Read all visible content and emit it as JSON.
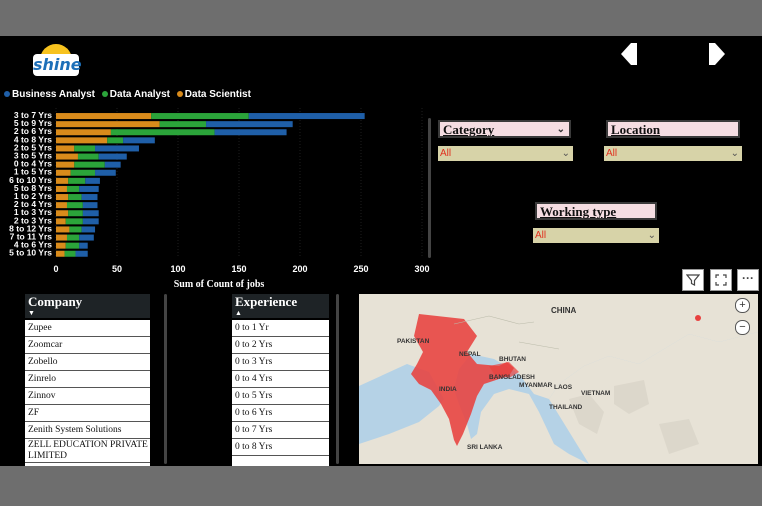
{
  "app": {
    "logo_text": "shine"
  },
  "nav": {
    "prev_label": "previous-page",
    "next_label": "next-page"
  },
  "legend": [
    {
      "name": "Business Analyst",
      "color": "#1f5fa8"
    },
    {
      "name": "Data Analyst",
      "color": "#2ba43a"
    },
    {
      "name": "Data Scientist",
      "color": "#d98b1b"
    }
  ],
  "chart_data": {
    "type": "bar",
    "orientation": "horizontal",
    "stacked": true,
    "categories": [
      "3 to 7 Yrs",
      "5 to 9 Yrs",
      "2 to 6 Yrs",
      "4 to 8 Yrs",
      "2 to 5 Yrs",
      "3 to 5 Yrs",
      "0 to 4 Yrs",
      "1 to 5 Yrs",
      "6 to 10 Yrs",
      "5 to 8 Yrs",
      "1 to 2 Yrs",
      "2 to 4 Yrs",
      "1 to 3 Yrs",
      "2 to 3 Yrs",
      "8 to 12 Yrs",
      "7 to 11 Yrs",
      "4 to 6 Yrs",
      "5 to 10 Yrs"
    ],
    "series": [
      {
        "name": "Data Scientist",
        "color": "#d98b1b",
        "values": [
          78,
          85,
          45,
          42,
          15,
          18,
          15,
          12,
          10,
          9,
          10,
          9,
          10,
          8,
          11,
          9,
          8,
          7
        ]
      },
      {
        "name": "Data Analyst",
        "color": "#2ba43a",
        "values": [
          80,
          38,
          85,
          13,
          17,
          17,
          25,
          20,
          14,
          10,
          11,
          13,
          12,
          14,
          10,
          10,
          11,
          9
        ]
      },
      {
        "name": "Business Analyst",
        "color": "#1f5fa8",
        "values": [
          95,
          71,
          59,
          26,
          36,
          23,
          13,
          17,
          12,
          16,
          13,
          12,
          13,
          13,
          11,
          12,
          7,
          10
        ]
      }
    ],
    "xlabel": "Sum of Count of jobs",
    "ylabel": "",
    "xticks": [
      0,
      50,
      100,
      150,
      200,
      250,
      300
    ],
    "xlim": [
      0,
      300
    ],
    "grid": true,
    "legend_position": "top-left"
  },
  "slicers": {
    "category": {
      "label": "Category",
      "value": "All"
    },
    "location": {
      "label": "Location",
      "value": "All"
    },
    "working_type": {
      "label": "Working type",
      "value": "All"
    }
  },
  "company": {
    "header": "Company",
    "items": [
      "Zupee",
      "Zoomcar",
      "Zobello",
      "Zinrelo",
      "Zinnov",
      "ZF",
      "Zenith System Solutions",
      "ZELL EDUCATION PRIVATE LIMITED"
    ]
  },
  "experience": {
    "header": "Experience",
    "items": [
      "0 to 1 Yr",
      "0 to 2 Yrs",
      "0 to 3 Yrs",
      "0 to 4 Yrs",
      "0 to 5 Yrs",
      "0 to 6 Yrs",
      "0 to 7 Yrs",
      "0 to 8 Yrs"
    ]
  },
  "toolbar": {
    "filter_icon": "filter-icon",
    "focus_icon": "focus-mode-icon",
    "more_label": "···"
  },
  "map": {
    "labels": [
      "CHINA",
      "NEPAL",
      "PAKISTAN",
      "INDIA",
      "MYANMAR",
      "THAILAND",
      "LAOS",
      "VIETNAM",
      "BHUTAN",
      "BANGLADESH",
      "SRI LANKA"
    ],
    "zoom_in": "+",
    "zoom_out": "−",
    "highlight_color": "#e8413f"
  }
}
